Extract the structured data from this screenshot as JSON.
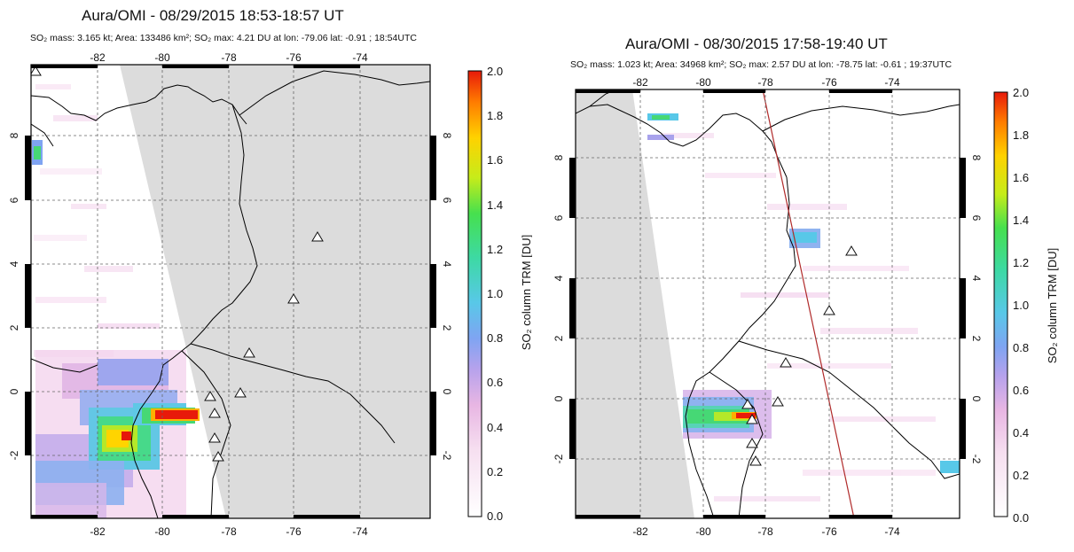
{
  "panels": [
    {
      "title": "Aura/OMI - 08/29/2015 18:53-18:57 UT",
      "subtitle": "SO₂ mass: 3.165 kt; Area: 133486 km²; SO₂ max: 4.21 DU at lon: -79.06 lat: -0.91 ; 18:54UTC",
      "lon_ticks": [
        "-82",
        "-80",
        "-78",
        "-76",
        "-74"
      ],
      "lat_ticks": [
        "8",
        "6",
        "4",
        "2",
        "0",
        "-2"
      ],
      "colorbar": {
        "label": "SO₂ column TRM [DU]",
        "ticks": [
          "2.0",
          "1.8",
          "1.6",
          "1.4",
          "1.2",
          "1.0",
          "0.8",
          "0.6",
          "0.4",
          "0.2",
          "0.0"
        ]
      }
    },
    {
      "title": "Aura/OMI - 08/30/2015 17:58-19:40 UT",
      "subtitle": "SO₂ mass: 1.023 kt; Area: 34968 km²; SO₂ max: 2.57 DU at lon: -78.75 lat: -0.61 ; 19:37UTC",
      "lon_ticks": [
        "-82",
        "-80",
        "-78",
        "-76",
        "-74"
      ],
      "lat_ticks": [
        "8",
        "6",
        "4",
        "2",
        "0",
        "-2"
      ],
      "colorbar": {
        "label": "SO₂ column TRM [DU]",
        "ticks": [
          "2.0",
          "1.8",
          "1.6",
          "1.4",
          "1.2",
          "1.0",
          "0.8",
          "0.6",
          "0.4",
          "0.2",
          "0.0"
        ]
      }
    }
  ],
  "colors": {
    "no_data_gray": "#dcdcdc",
    "grid": "#666666",
    "coastline": "#000000",
    "orbit_track": "#b02a2a"
  }
}
